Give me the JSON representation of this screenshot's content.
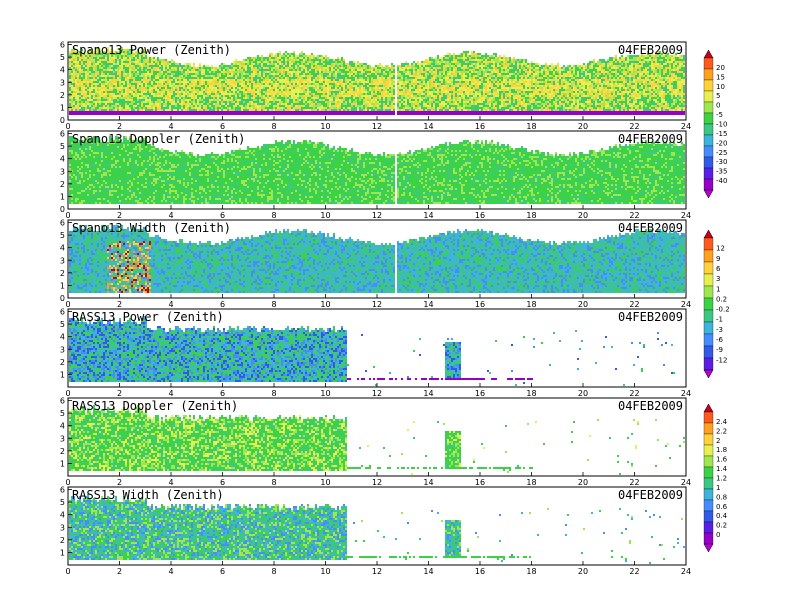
{
  "chart_data": [
    {
      "type": "heatmap",
      "title": "Spano13 Power (Zenith)",
      "date": "04FEB2009",
      "x_ticks": [
        0,
        2,
        4,
        6,
        8,
        10,
        12,
        14,
        16,
        18,
        20,
        22,
        24
      ],
      "y_ticks": [
        0,
        1,
        2,
        3,
        4,
        5,
        6
      ],
      "xlim": [
        0,
        24
      ],
      "ylim": [
        0,
        6.2
      ],
      "colorbar_group": 0
    },
    {
      "type": "heatmap",
      "title": "Spano13 Doppler (Zenith)",
      "date": "04FEB2009",
      "x_ticks": [
        0,
        2,
        4,
        6,
        8,
        10,
        12,
        14,
        16,
        18,
        20,
        22,
        24
      ],
      "y_ticks": [
        0,
        1,
        2,
        3,
        4,
        5,
        6
      ],
      "xlim": [
        0,
        24
      ],
      "ylim": [
        0,
        6.2
      ],
      "colorbar_group": 0
    },
    {
      "type": "heatmap",
      "title": "Spano13 Width (Zenith)",
      "date": "04FEB2009",
      "x_ticks": [
        0,
        2,
        4,
        6,
        8,
        10,
        12,
        14,
        16,
        18,
        20,
        22,
        24
      ],
      "y_ticks": [
        0,
        1,
        2,
        3,
        4,
        5,
        6
      ],
      "xlim": [
        0,
        24
      ],
      "ylim": [
        0,
        6.2
      ],
      "colorbar_group": 1
    },
    {
      "type": "heatmap",
      "title": "RASS13 Power (Zenith)",
      "date": "04FEB2009",
      "x_ticks": [
        0,
        2,
        4,
        6,
        8,
        10,
        12,
        14,
        16,
        18,
        20,
        22,
        24
      ],
      "y_ticks": [
        1,
        2,
        3,
        4,
        5,
        6
      ],
      "xlim": [
        0,
        24
      ],
      "ylim": [
        0,
        6.2
      ],
      "colorbar_group": 1
    },
    {
      "type": "heatmap",
      "title": "RASS13 Doppler (Zenith)",
      "date": "04FEB2009",
      "x_ticks": [
        0,
        2,
        4,
        6,
        8,
        10,
        12,
        14,
        16,
        18,
        20,
        22,
        24
      ],
      "y_ticks": [
        1,
        2,
        3,
        4,
        5,
        6
      ],
      "xlim": [
        0,
        24
      ],
      "ylim": [
        0,
        6.2
      ],
      "colorbar_group": 2
    },
    {
      "type": "heatmap",
      "title": "RASS13 Width (Zenith)",
      "date": "04FEB2009",
      "x_ticks": [
        0,
        2,
        4,
        6,
        8,
        10,
        12,
        14,
        16,
        18,
        20,
        22,
        24
      ],
      "y_ticks": [
        1,
        2,
        3,
        4,
        5,
        6
      ],
      "xlim": [
        0,
        24
      ],
      "ylim": [
        0,
        6.2
      ],
      "colorbar_group": 2
    }
  ],
  "colorbars": [
    {
      "labels": [
        "20",
        "15",
        "10",
        "5",
        "0",
        "-5",
        "-10",
        "-15",
        "-20",
        "-25",
        "-30",
        "-35",
        "-40"
      ],
      "colors": [
        "#c8001e",
        "#ff5a1e",
        "#ffa01e",
        "#ffd23c",
        "#e6f050",
        "#a0e650",
        "#3cd246",
        "#3cc882",
        "#3cb4dc",
        "#468cff",
        "#325ae6",
        "#5a1ee6",
        "#9600c8",
        "#b400d2"
      ]
    },
    {
      "labels": [
        "12",
        "9",
        "6",
        "3",
        "1",
        "0.2",
        "-0.2",
        "-1",
        "-3",
        "-6",
        "-9",
        "-12"
      ],
      "colors": [
        "#c8001e",
        "#ff5a1e",
        "#ffa01e",
        "#ffd23c",
        "#e6f050",
        "#a0e650",
        "#3cd246",
        "#3cc882",
        "#3cb4dc",
        "#468cff",
        "#325ae6",
        "#5a1ee6",
        "#b400d2"
      ]
    },
    {
      "labels": [
        "2.4",
        "2.2",
        "2",
        "1.8",
        "1.6",
        "1.4",
        "1.2",
        "1",
        "0.8",
        "0.6",
        "0.4",
        "0.2",
        "0"
      ],
      "colors": [
        "#c8001e",
        "#ff5a1e",
        "#ffa01e",
        "#ffd23c",
        "#e6f050",
        "#a0e650",
        "#3cd246",
        "#3cc882",
        "#3cb4dc",
        "#468cff",
        "#325ae6",
        "#5a1ee6",
        "#9600c8",
        "#b400d2"
      ]
    }
  ]
}
